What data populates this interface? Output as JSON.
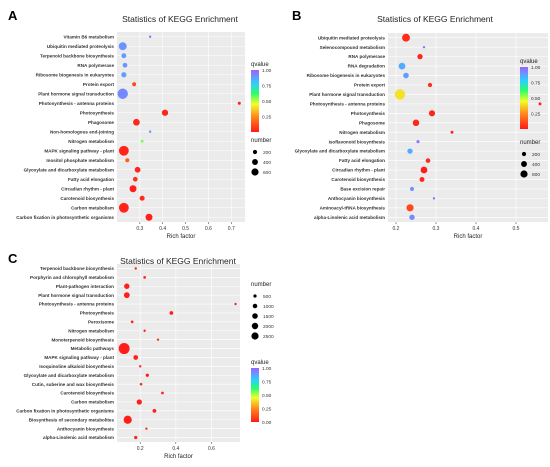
{
  "panels": [
    {
      "letter": "A",
      "title": "Statistics of KEGG Enrichment",
      "xlabel": "Rich factor",
      "xticks": [
        0.3,
        0.4,
        0.5,
        0.6,
        0.7
      ],
      "xlim": [
        0.2,
        0.76
      ],
      "qvalue_title": "qvalue",
      "qvalue_ticks": [
        "1.00",
        "0.75",
        "0.50",
        "0.25"
      ],
      "number_title": "number",
      "number_legend": [
        200,
        400,
        600
      ],
      "categories": [
        "Vitamin B6 metabolism",
        "Ubiquitin mediated proteolysis",
        "Terpenoid backbone biosynthesis",
        "RNA polymerase",
        "Ribosome biogenesis in eukaryotes",
        "Protein export",
        "Plant hormone signal transduction",
        "Photosynthesis - antenna proteins",
        "Photosynthesis",
        "Phagosome",
        "Non-homologous end-joining",
        "Nitrogen metabolism",
        "MAPK signaling pathway - plant",
        "Inositol phosphate metabolism",
        "Glyoxylate and dicarboxylate metabolism",
        "Fatty acid elongation",
        "Circadian rhythm - plant",
        "Carotenoid biosynthesis",
        "Carbon metabolism",
        "Carbon fixation in photosynthetic organisms"
      ],
      "points": [
        {
          "x": 0.345,
          "n": 20,
          "q": 0.95
        },
        {
          "x": 0.225,
          "n": 420,
          "q": 0.9
        },
        {
          "x": 0.23,
          "n": 160,
          "q": 0.88
        },
        {
          "x": 0.235,
          "n": 150,
          "q": 0.9
        },
        {
          "x": 0.23,
          "n": 180,
          "q": 0.88
        },
        {
          "x": 0.275,
          "n": 100,
          "q": 0.1
        },
        {
          "x": 0.225,
          "n": 720,
          "q": 0.92
        },
        {
          "x": 0.735,
          "n": 60,
          "q": 0.01
        },
        {
          "x": 0.41,
          "n": 260,
          "q": 0.02
        },
        {
          "x": 0.285,
          "n": 300,
          "q": 0.03
        },
        {
          "x": 0.345,
          "n": 30,
          "q": 0.9
        },
        {
          "x": 0.31,
          "n": 60,
          "q": 0.55
        },
        {
          "x": 0.23,
          "n": 640,
          "q": 0.02
        },
        {
          "x": 0.245,
          "n": 110,
          "q": 0.15
        },
        {
          "x": 0.29,
          "n": 220,
          "q": 0.02
        },
        {
          "x": 0.28,
          "n": 150,
          "q": 0.05
        },
        {
          "x": 0.27,
          "n": 320,
          "q": 0.01
        },
        {
          "x": 0.31,
          "n": 170,
          "q": 0.04
        },
        {
          "x": 0.23,
          "n": 640,
          "q": 0.02
        },
        {
          "x": 0.34,
          "n": 320,
          "q": 0.01
        }
      ]
    },
    {
      "letter": "B",
      "title": "Statistics of KEGG Enrichment",
      "xlabel": "Rich factor",
      "xticks": [
        0.2,
        0.3,
        0.4,
        0.5
      ],
      "xlim": [
        0.18,
        0.58
      ],
      "qvalue_title": "qvalue",
      "qvalue_ticks": [
        "1.00",
        "0.75",
        "0.50",
        "0.25"
      ],
      "number_title": "number",
      "number_legend": [
        200,
        400,
        600
      ],
      "categories": [
        "Ubiquitin mediated proteolysis",
        "Selenocompound metabolism",
        "RNA polymerase",
        "RNA degradation",
        "Ribosome biogenesis in eukaryotes",
        "Protein export",
        "Plant hormone signal transduction",
        "Photosynthesis - antenna proteins",
        "Photosynthesis",
        "Phagosome",
        "Nitrogen metabolism",
        "Isoflavonoid biosynthesis",
        "Glyoxylate and dicarboxylate metabolism",
        "Fatty acid elongation",
        "Circadian rhythm - plant",
        "Carotenoid biosynthesis",
        "Base excision repair",
        "Anthocyanin biosynthesis",
        "Aminoacyl-tRNA biosynthesis",
        "alpha-Linolenic acid metabolism"
      ],
      "points": [
        {
          "x": 0.225,
          "n": 440,
          "q": 0.04
        },
        {
          "x": 0.27,
          "n": 20,
          "q": 0.95
        },
        {
          "x": 0.26,
          "n": 200,
          "q": 0.02
        },
        {
          "x": 0.215,
          "n": 320,
          "q": 0.85
        },
        {
          "x": 0.225,
          "n": 220,
          "q": 0.88
        },
        {
          "x": 0.285,
          "n": 130,
          "q": 0.05
        },
        {
          "x": 0.21,
          "n": 760,
          "q": 0.4
        },
        {
          "x": 0.56,
          "n": 60,
          "q": 0.01
        },
        {
          "x": 0.29,
          "n": 260,
          "q": 0.02
        },
        {
          "x": 0.25,
          "n": 300,
          "q": 0.03
        },
        {
          "x": 0.34,
          "n": 60,
          "q": 0.02
        },
        {
          "x": 0.255,
          "n": 70,
          "q": 0.95
        },
        {
          "x": 0.235,
          "n": 200,
          "q": 0.85
        },
        {
          "x": 0.28,
          "n": 150,
          "q": 0.04
        },
        {
          "x": 0.27,
          "n": 320,
          "q": 0.01
        },
        {
          "x": 0.265,
          "n": 170,
          "q": 0.03
        },
        {
          "x": 0.24,
          "n": 120,
          "q": 0.9
        },
        {
          "x": 0.295,
          "n": 20,
          "q": 0.95
        },
        {
          "x": 0.235,
          "n": 360,
          "q": 0.1
        },
        {
          "x": 0.24,
          "n": 200,
          "q": 0.92
        }
      ]
    },
    {
      "letter": "C",
      "title": "Statistics of KEGG Enrichment",
      "xlabel": "Rich factor",
      "xticks": [
        0.2,
        0.4,
        0.6
      ],
      "xlim": [
        0.07,
        0.76
      ],
      "qvalue_title": "qvalue",
      "qvalue_ticks": [
        "1.00",
        "0.75",
        "0.50",
        "0.25",
        "0.00"
      ],
      "number_title": "number",
      "number_legend": [
        500,
        1000,
        1500,
        2000,
        2500
      ],
      "categories": [
        "Terpenoid backbone biosynthesis",
        "Porphyrin and chlorophyll metabolism",
        "Plant-pathogen interaction",
        "Plant hormone signal transduction",
        "Photosynthesis - antenna proteins",
        "Photosynthesis",
        "Peroxisome",
        "Nitrogen metabolism",
        "Monoterpenoid biosynthesis",
        "Metabolic pathways",
        "MAPK signaling pathway - plant",
        "Isoquinoline alkaloid biosynthesis",
        "Glyoxylate and dicarboxylate metabolism",
        "Cutin, suberine and wax biosynthesis",
        "Carotenoid biosynthesis",
        "Carbon metabolism",
        "Carbon fixation in photosynthetic organisms",
        "Biosynthesis of secondary metabolites",
        "Anthocyanin biosynthesis",
        "alpha-Linolenic acid metabolism"
      ],
      "points": [
        {
          "x": 0.175,
          "n": 120,
          "q": 0.02
        },
        {
          "x": 0.225,
          "n": 160,
          "q": 0.02
        },
        {
          "x": 0.125,
          "n": 650,
          "q": 0.01
        },
        {
          "x": 0.125,
          "n": 760,
          "q": 0.01
        },
        {
          "x": 0.735,
          "n": 60,
          "q": 0.01
        },
        {
          "x": 0.375,
          "n": 300,
          "q": 0.01
        },
        {
          "x": 0.155,
          "n": 160,
          "q": 0.02
        },
        {
          "x": 0.225,
          "n": 100,
          "q": 0.02
        },
        {
          "x": 0.3,
          "n": 40,
          "q": 0.05
        },
        {
          "x": 0.11,
          "n": 2700,
          "q": 0.01
        },
        {
          "x": 0.175,
          "n": 500,
          "q": 0.01
        },
        {
          "x": 0.2,
          "n": 100,
          "q": 0.02
        },
        {
          "x": 0.24,
          "n": 240,
          "q": 0.01
        },
        {
          "x": 0.205,
          "n": 150,
          "q": 0.03
        },
        {
          "x": 0.325,
          "n": 170,
          "q": 0.02
        },
        {
          "x": 0.195,
          "n": 620,
          "q": 0.01
        },
        {
          "x": 0.28,
          "n": 320,
          "q": 0.01
        },
        {
          "x": 0.13,
          "n": 1500,
          "q": 0.01
        },
        {
          "x": 0.235,
          "n": 30,
          "q": 0.05
        },
        {
          "x": 0.175,
          "n": 240,
          "q": 0.02
        }
      ]
    }
  ]
}
